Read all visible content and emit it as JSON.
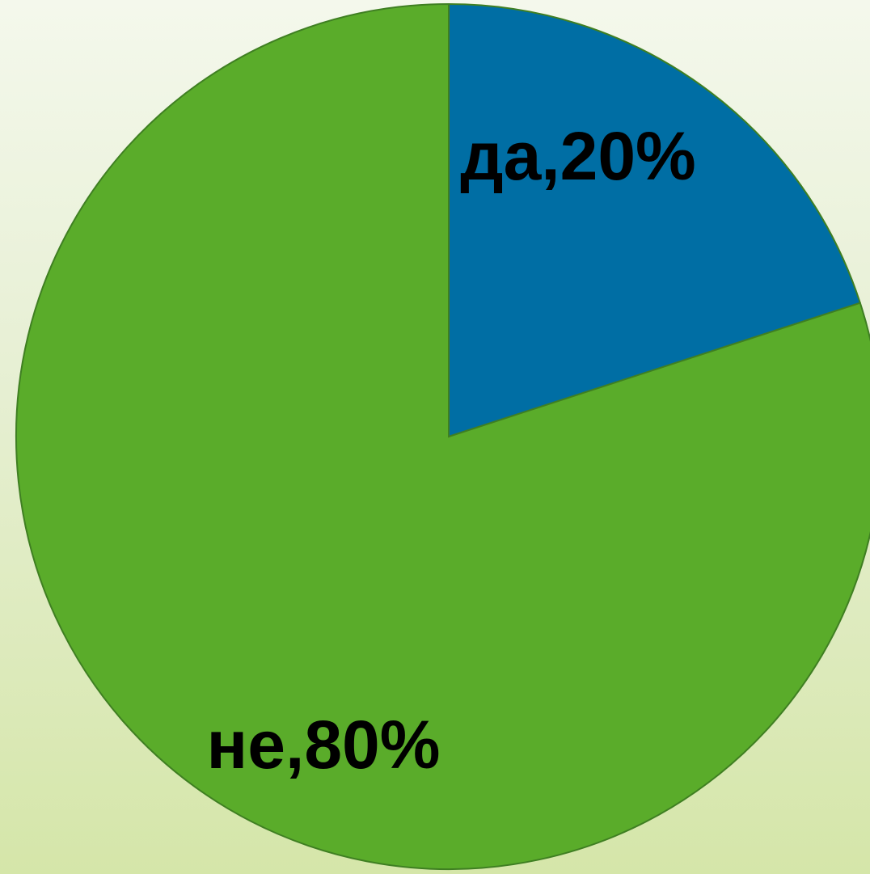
{
  "chart_data": {
    "type": "pie",
    "slices": [
      {
        "category": "да",
        "value": 20,
        "label": "да,20%",
        "color": "#006ea4"
      },
      {
        "category": "не",
        "value": 80,
        "label": "не,80%",
        "color": "#5aac2a"
      }
    ],
    "start_angle_deg": 0,
    "direction": "clockwise",
    "legend": "none"
  }
}
